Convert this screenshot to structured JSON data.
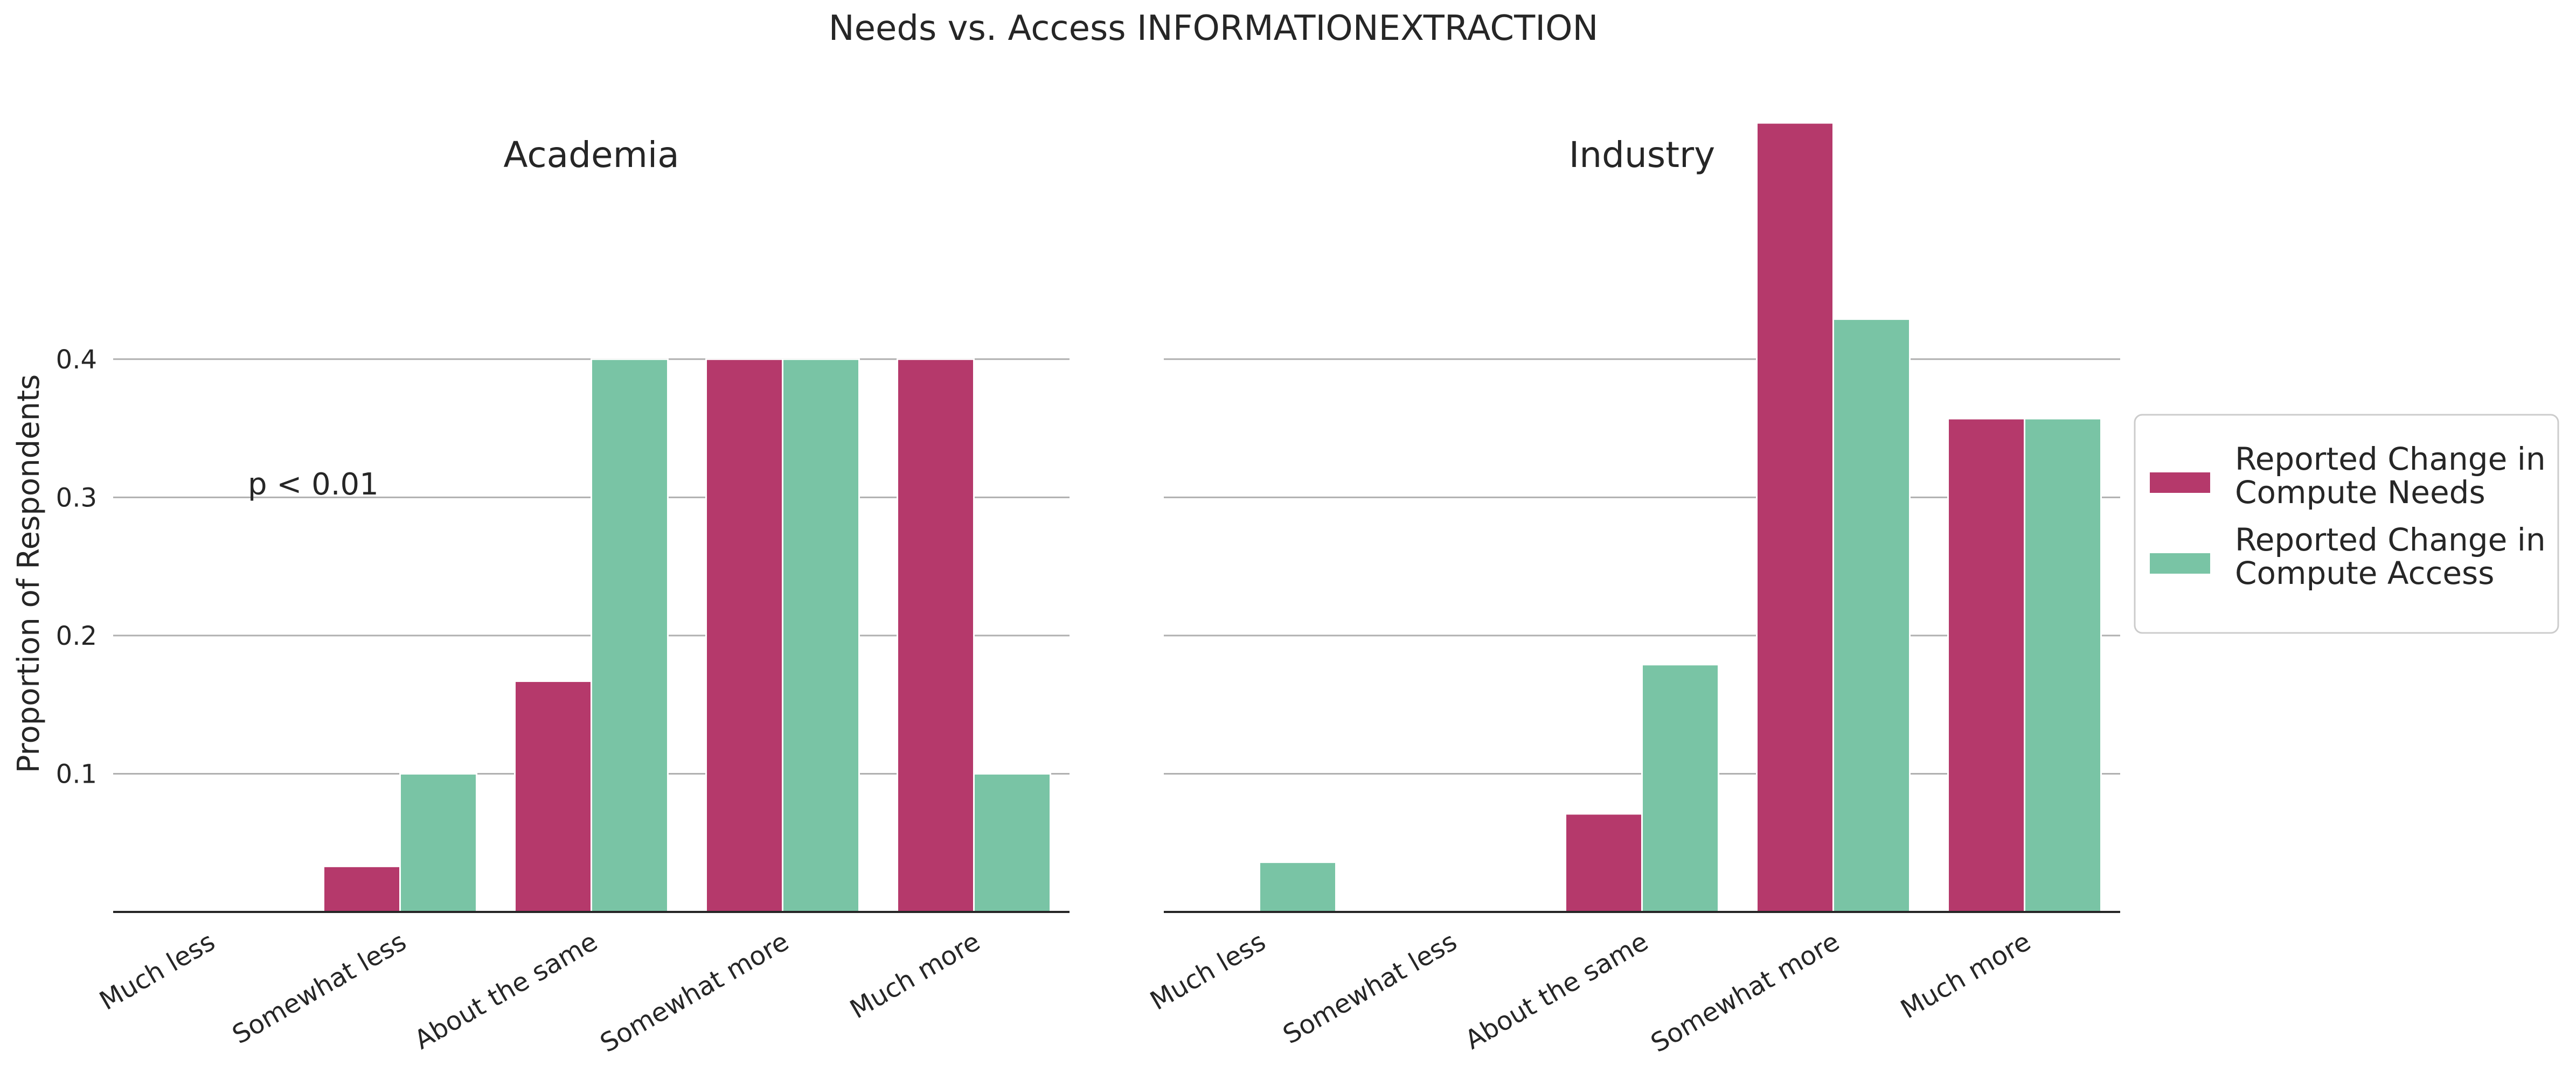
{
  "chart_data": {
    "type": "bar",
    "title": "Needs vs. Access INFORMATIONEXTRACTION",
    "ylabel": "Proportion of Respondents",
    "categories": [
      "Much less",
      "Somewhat less",
      "About the same",
      "Somewhat more",
      "Much more"
    ],
    "yticks": [
      "0.1",
      "0.2",
      "0.3",
      "0.4"
    ],
    "ylim": [
      0,
      0.58
    ],
    "grid": true,
    "legend": {
      "placement": "right",
      "entries": [
        {
          "lines": [
            "Reported Change in",
            "Compute Needs"
          ],
          "color": "#b5396b"
        },
        {
          "lines": [
            "Reported Change in",
            "Compute Access"
          ],
          "color": "#79c4a5"
        }
      ]
    },
    "panels": [
      {
        "title": "Academia",
        "annotation": "p < 0.01",
        "series": [
          {
            "name": "Reported Change in Compute Needs",
            "values": [
              0.0,
              0.033,
              0.167,
              0.4,
              0.4
            ]
          },
          {
            "name": "Reported Change in Compute Access",
            "values": [
              0.0,
              0.1,
              0.4,
              0.4,
              0.1
            ]
          }
        ]
      },
      {
        "title": "Industry",
        "annotation": "",
        "series": [
          {
            "name": "Reported Change in Compute Needs",
            "values": [
              0.0,
              0.0,
              0.071,
              0.571,
              0.357
            ]
          },
          {
            "name": "Reported Change in Compute Access",
            "values": [
              0.036,
              0.0,
              0.179,
              0.429,
              0.357
            ]
          }
        ]
      }
    ]
  }
}
